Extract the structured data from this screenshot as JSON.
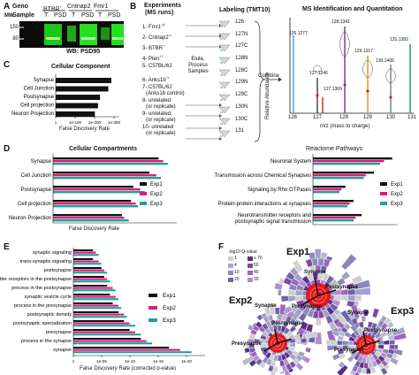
{
  "panelA": {
    "letter": "A",
    "mw_label": "MW",
    "mw_ticks": [
      "150",
      "80"
    ],
    "geno_label": "Geno",
    "sample_label": "Sample",
    "genotypes": [
      "BTBR",
      "Cntnap2",
      "Fmr1"
    ],
    "lanes": [
      "T",
      "PSD",
      "T",
      "PSD",
      "T",
      "PSD"
    ],
    "caption": "WB: PSD95"
  },
  "panelB": {
    "letter": "B",
    "experiments_title": "Experiments",
    "experiments_subtitle": "(MS runs)",
    "experiments": [
      "1- Fmr1",
      "2- Cntnap2",
      "3- BTBR",
      "4- Pten",
      "5- C57BL/6J",
      "6- Anks1b",
      "7- C57BL/6J",
      "(Anks1b control)",
      "8- unrelated",
      "(or replicate)",
      "9- unrelated",
      "(or replicate)",
      "10- unrelated",
      "(or replicate)"
    ],
    "process_text": [
      "Elute,",
      "Process",
      "Samples"
    ],
    "labeling_title": "Labeling (TMT10)",
    "tmt_channels": [
      "126",
      "127N",
      "127C",
      "128N",
      "128C",
      "129N",
      "129C",
      "130N",
      "130C",
      "131"
    ],
    "combine_label": "Combine",
    "ms_title": "MS Identification and Quantitation",
    "ms_ylabel": "Relative Abundance",
    "ms_xlabel": "m/z (mass to charge)",
    "ms_xticks": [
      "126",
      "127",
      "128",
      "129",
      "130",
      "131"
    ],
    "ms_peaks": [
      "126.1277",
      "127.1246",
      "127.1309",
      "128.1341",
      "129.1317",
      "130.1406",
      "131.1382"
    ]
  },
  "panelC": {
    "letter": "C",
    "title": "Cellular Component",
    "xlabel": "False Discovery Rate",
    "ticks": [
      "1",
      "1e-100",
      "1e-200",
      "1e-300"
    ]
  },
  "panelD": {
    "letter": "D",
    "left_title": "Cellular Compartments",
    "right_title": "Reactome Pathways",
    "xlabel": "False Discovery Rate",
    "legend": [
      "Exp1",
      "Exp2",
      "Exp3"
    ]
  },
  "panelE": {
    "letter": "E",
    "xlabel": "False Discovery Rate (corrected p-value)",
    "ticks": [
      "1",
      "1e-05",
      "1e-10",
      "1e-15",
      "1e-20"
    ],
    "legend": [
      "Exp1",
      "Exp2",
      "Exp3"
    ]
  },
  "panelF": {
    "letter": "F",
    "legend_title": "-log10 Q-value",
    "legend_values": [
      "1",
      "≥ 70",
      "4",
      "50",
      "10",
      "40",
      "20",
      "30"
    ],
    "exps": [
      "Exp1",
      "Exp2",
      "Exp3"
    ],
    "labels": [
      "Synapse",
      "Postsynapse",
      "Presynapse"
    ]
  },
  "colors": {
    "exp1": "#111111",
    "exp2": "#e0197d",
    "exp3": "#1aa39a",
    "wb_bg": "#0b0b0b",
    "wb_band": "#22d81e",
    "sun_red": "#e8161c",
    "sun_purple": "#6b3fa0"
  },
  "chart_data": [
    {
      "type": "bar",
      "title": "Cellular Component",
      "categories": [
        "Synapse",
        "Cell Junction",
        "Postsynapse",
        "Cell projection",
        "Neuron Projection"
      ],
      "values": [
        270,
        255,
        215,
        205,
        190
      ],
      "xlabel": "False Discovery Rate",
      "orientation": "horizontal"
    },
    {
      "type": "bar",
      "title": "Cellular Compartments",
      "categories": [
        "Synapse",
        "Cell Junction",
        "Postsynapse",
        "Cell projection",
        "Neuron Projection"
      ],
      "series": [
        {
          "name": "Exp1",
          "values": [
            230,
            210,
            175,
            170,
            150
          ]
        },
        {
          "name": "Exp2",
          "values": [
            240,
            225,
            190,
            180,
            155
          ]
        },
        {
          "name": "Exp3",
          "values": [
            250,
            235,
            200,
            185,
            165
          ]
        }
      ],
      "xlabel": "False Discovery Rate",
      "orientation": "horizontal"
    },
    {
      "type": "bar",
      "title": "Reactome Pathways",
      "categories": [
        "Neuronal System",
        "Transmission across Chemical Synapses",
        "Signaling by Rho GTPases",
        "Protein-protein interactions at synapses",
        "Neurotransmitter receptors and postsynaptic signal transmission"
      ],
      "series": [
        {
          "name": "Exp1",
          "values": [
            78,
            60,
            32,
            40,
            48
          ]
        },
        {
          "name": "Exp2",
          "values": [
            70,
            52,
            28,
            36,
            42
          ]
        },
        {
          "name": "Exp3",
          "values": [
            66,
            50,
            26,
            34,
            40
          ]
        }
      ],
      "xlabel": "False Discovery Rate",
      "orientation": "horizontal"
    },
    {
      "type": "bar",
      "categories": [
        "synaptic signaling",
        "trans-synaptic signaling",
        "postsynapse",
        "neurotransmitter receptors in the postsynapse",
        "process in the postsynapse",
        "synaptic vesicle cycle",
        "process in the presynapse",
        "postsynaptic density",
        "postsynaptic specialization",
        "presynapse",
        "process in the synapse",
        "synapse"
      ],
      "series": [
        {
          "name": "Exp1",
          "values": [
            3.5,
            3.5,
            5,
            5.5,
            6,
            6.5,
            7,
            8,
            9,
            10,
            12,
            17
          ]
        },
        {
          "name": "Exp2",
          "values": [
            4,
            4.5,
            5.5,
            6,
            7,
            7.5,
            8,
            9,
            10,
            11,
            13,
            19
          ]
        },
        {
          "name": "Exp3",
          "values": [
            4.5,
            5,
            6,
            6.5,
            7.5,
            8,
            8.5,
            9.5,
            11,
            12,
            14,
            21
          ]
        }
      ],
      "xlabel": "False Discovery Rate (corrected p-value)",
      "orientation": "horizontal"
    }
  ]
}
